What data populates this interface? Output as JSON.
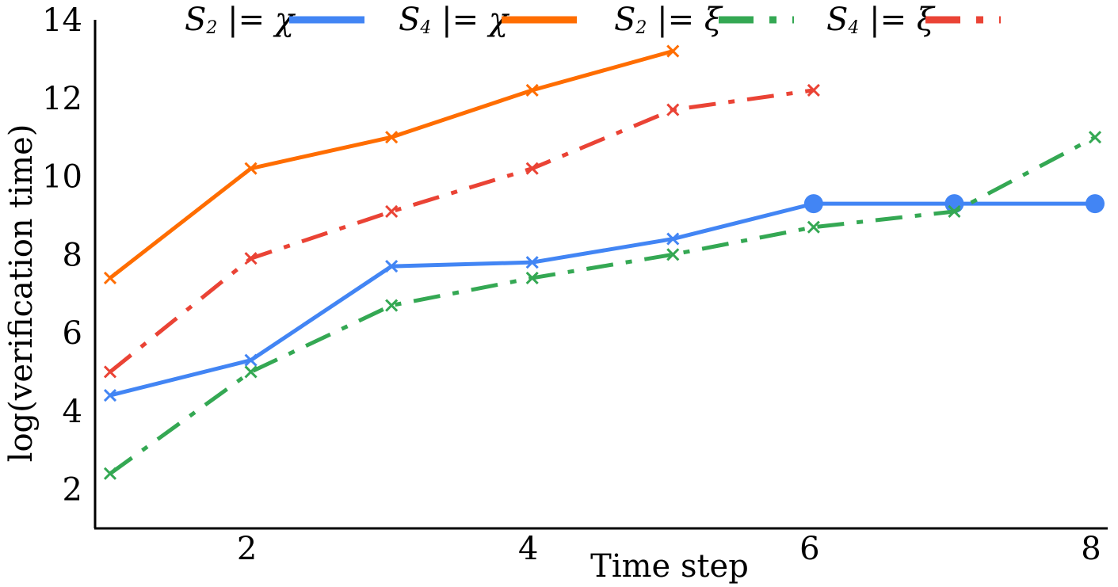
{
  "chart_data": {
    "type": "line",
    "title": "",
    "xlabel": "Time step",
    "ylabel": "log(verification time)",
    "xlim": [
      1,
      8.05
    ],
    "ylim": [
      1,
      14
    ],
    "xticks": [
      2,
      4,
      6,
      8
    ],
    "yticks": [
      2,
      4,
      6,
      8,
      10,
      12,
      14
    ],
    "grid": false,
    "legend_position": "top",
    "series": [
      {
        "name": "S2 |= χ",
        "legend": {
          "subject": "S",
          "sub": "2",
          "rel": "|=",
          "formula": "χ"
        },
        "color": "#4285F4",
        "dash": "solid",
        "x": [
          1,
          2,
          3,
          4,
          5,
          6,
          7,
          8
        ],
        "y": [
          4.4,
          5.3,
          7.7,
          7.8,
          8.4,
          9.3,
          9.3,
          9.3
        ],
        "markers": [
          "x",
          "x",
          "x",
          "x",
          "x",
          "circle",
          "circle",
          "circle"
        ]
      },
      {
        "name": "S4 |= χ",
        "legend": {
          "subject": "S",
          "sub": "4",
          "rel": "|=",
          "formula": "χ"
        },
        "color": "#FF6D00",
        "dash": "solid",
        "x": [
          1,
          2,
          3,
          4,
          5
        ],
        "y": [
          7.4,
          10.2,
          11.0,
          12.2,
          13.2
        ],
        "markers": [
          "x",
          "x",
          "x",
          "x",
          "x"
        ]
      },
      {
        "name": "S2 |= ξ",
        "legend": {
          "subject": "S",
          "sub": "2",
          "rel": "|=",
          "formula": "ξ"
        },
        "color": "#34A853",
        "dash": "dashdot",
        "x": [
          1,
          2,
          3,
          4,
          5,
          6,
          7,
          8
        ],
        "y": [
          2.4,
          5.0,
          6.7,
          7.4,
          8.0,
          8.7,
          9.1,
          11.0
        ],
        "markers": [
          "x",
          "x",
          "x",
          "x",
          "x",
          "x",
          "x",
          "x"
        ]
      },
      {
        "name": "S4 |= ξ",
        "legend": {
          "subject": "S",
          "sub": "4",
          "rel": "|=",
          "formula": "ξ"
        },
        "color": "#EA4335",
        "dash": "dashdot",
        "x": [
          1,
          2,
          3,
          4,
          5,
          6
        ],
        "y": [
          5.0,
          7.9,
          9.1,
          10.2,
          11.7,
          12.2
        ],
        "markers": [
          "x",
          "x",
          "x",
          "x",
          "x",
          "x"
        ]
      }
    ]
  }
}
